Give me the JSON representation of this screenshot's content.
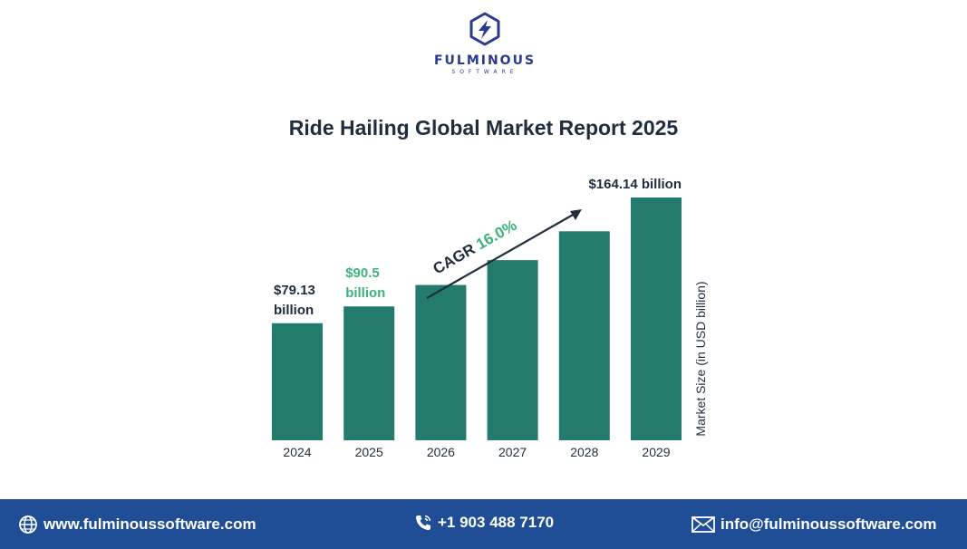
{
  "brand": {
    "name": "FULMINOUS",
    "tagline": "SOFTWARE"
  },
  "colors": {
    "bar": "#237b6c",
    "accent_green": "#3cb37a",
    "text_dark": "#1f2d3d",
    "footer_bg": "#1f4e96"
  },
  "chart_data": {
    "type": "bar",
    "title": "Ride Hailing Global Market Report 2025",
    "categories": [
      "2024",
      "2025",
      "2026",
      "2027",
      "2028",
      "2029"
    ],
    "values": [
      79.13,
      90.5,
      105.0,
      121.8,
      141.3,
      164.14
    ],
    "ylabel": "Market Size (in USD billion)",
    "xlabel": "",
    "ylim": [
      0,
      164.14
    ],
    "grid": false,
    "data_labels": [
      {
        "category": "2024",
        "lines": [
          "$79.13",
          "billion"
        ],
        "color": "#1f2d3d"
      },
      {
        "category": "2025",
        "lines": [
          "$90.5",
          "billion"
        ],
        "color": "#3cb37a"
      },
      {
        "category": "2029",
        "lines": [
          "$164.14 billion"
        ],
        "color": "#1f2d3d"
      }
    ],
    "annotation": {
      "label": "CAGR",
      "value": "16.0%"
    }
  },
  "footer": {
    "website": "www.fulminoussoftware.com",
    "phone": "+1 903 488 7170",
    "email": "info@fulminoussoftware.com"
  }
}
